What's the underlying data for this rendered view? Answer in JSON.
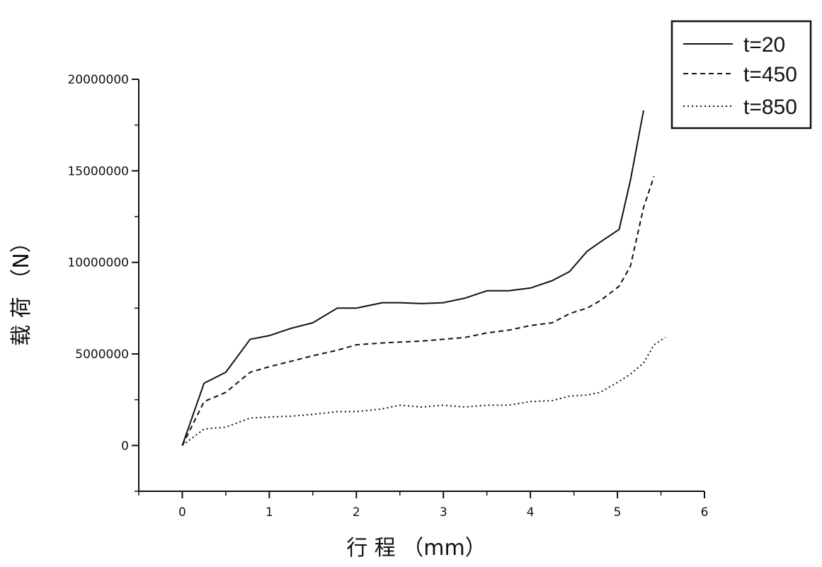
{
  "chart_data": {
    "type": "line",
    "xlabel": "行 程 （mm）",
    "ylabel": "载 荷 （N）",
    "xlim": [
      -0.5,
      6
    ],
    "ylim": [
      -2500000,
      20000000
    ],
    "xticks": [
      0,
      1,
      2,
      3,
      4,
      5,
      6
    ],
    "xtick_labels": [
      "0",
      "1",
      "2",
      "3",
      "4",
      "5",
      "6"
    ],
    "yticks": [
      0,
      5000000,
      10000000,
      15000000,
      20000000
    ],
    "ytick_labels": [
      "0",
      "5000000",
      "10000000",
      "15000000",
      "20000000"
    ],
    "grid": false,
    "legend_position": "top-right, outside plot",
    "series": [
      {
        "name": "t=20",
        "style": "solid",
        "x": [
          0,
          0.25,
          0.5,
          0.78,
          1.0,
          1.25,
          1.5,
          1.78,
          2.0,
          2.3,
          2.5,
          2.75,
          3.0,
          3.25,
          3.5,
          3.75,
          4.0,
          4.25,
          4.45,
          4.65,
          4.8,
          5.02,
          5.15,
          5.3
        ],
        "y": [
          0,
          3400000,
          4000000,
          5800000,
          6000000,
          6400000,
          6700000,
          7500000,
          7500000,
          7800000,
          7800000,
          7750000,
          7800000,
          8050000,
          8450000,
          8450000,
          8600000,
          9000000,
          9500000,
          10600000,
          11100000,
          11800000,
          14500000,
          18300000
        ]
      },
      {
        "name": "t=450",
        "style": "dashed",
        "x": [
          0,
          0.25,
          0.5,
          0.78,
          1.0,
          1.25,
          1.5,
          1.78,
          2.0,
          2.3,
          2.5,
          2.75,
          3.0,
          3.25,
          3.5,
          3.75,
          4.0,
          4.25,
          4.45,
          4.65,
          4.8,
          5.02,
          5.15,
          5.3,
          5.42
        ],
        "y": [
          0,
          2400000,
          2900000,
          4000000,
          4300000,
          4600000,
          4900000,
          5200000,
          5500000,
          5600000,
          5650000,
          5700000,
          5800000,
          5900000,
          6150000,
          6300000,
          6550000,
          6700000,
          7200000,
          7500000,
          7900000,
          8700000,
          9800000,
          13000000,
          14700000
        ]
      },
      {
        "name": "t=850",
        "style": "dotted",
        "x": [
          0,
          0.25,
          0.5,
          0.78,
          1.0,
          1.25,
          1.5,
          1.78,
          2.0,
          2.3,
          2.5,
          2.75,
          3.0,
          3.25,
          3.5,
          3.75,
          4.0,
          4.25,
          4.45,
          4.65,
          4.8,
          5.02,
          5.15,
          5.3,
          5.42,
          5.55
        ],
        "y": [
          0,
          900000,
          1000000,
          1500000,
          1550000,
          1600000,
          1700000,
          1850000,
          1850000,
          2000000,
          2200000,
          2100000,
          2200000,
          2100000,
          2200000,
          2200000,
          2400000,
          2450000,
          2700000,
          2750000,
          2900000,
          3500000,
          3900000,
          4500000,
          5500000,
          5900000
        ]
      }
    ]
  }
}
